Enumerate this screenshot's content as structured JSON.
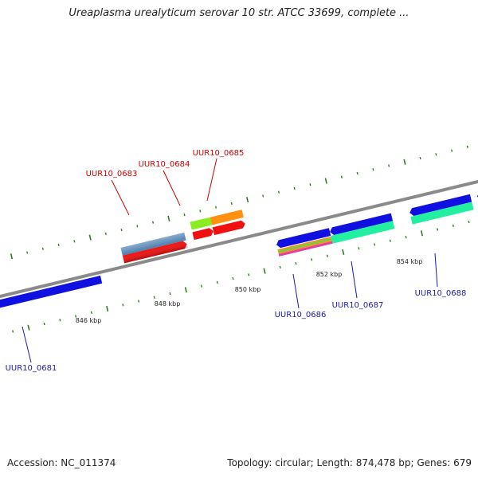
{
  "title": "Ureaplasma urealyticum serovar 10 str. ATCC 33699, complete ...",
  "footer": {
    "accession": "Accession: NC_011374",
    "topology": "Topology: circular; Length: 874,478 bp; Genes: 679"
  },
  "colors": {
    "backbone": "#8a8a8a",
    "tick": "#2e7d1e",
    "forward_label": "#cc0000",
    "reverse_label": "#1a1aaa",
    "blue": "#1010e0",
    "steel": "#4a7fb0",
    "red": "#f01010",
    "lime": "#88ee22",
    "orange": "#ff9010",
    "teal": "#20f0a0",
    "cyan": "#10b0f0",
    "stripe_pink": "#e040a0",
    "stripe_orange": "#f09020",
    "stripe_green": "#60d040"
  },
  "scale_labels": [
    "846 kbp",
    "848 kbp",
    "850 kbp",
    "852 kbp",
    "854 kbp"
  ],
  "genes": [
    {
      "id": "UUR10_0681",
      "strand": "reverse"
    },
    {
      "id": "UUR10_0683",
      "strand": "forward"
    },
    {
      "id": "UUR10_0684",
      "strand": "forward"
    },
    {
      "id": "UUR10_0685",
      "strand": "forward"
    },
    {
      "id": "UUR10_0686",
      "strand": "reverse"
    },
    {
      "id": "UUR10_0687",
      "strand": "reverse"
    },
    {
      "id": "UUR10_0688",
      "strand": "reverse"
    }
  ]
}
